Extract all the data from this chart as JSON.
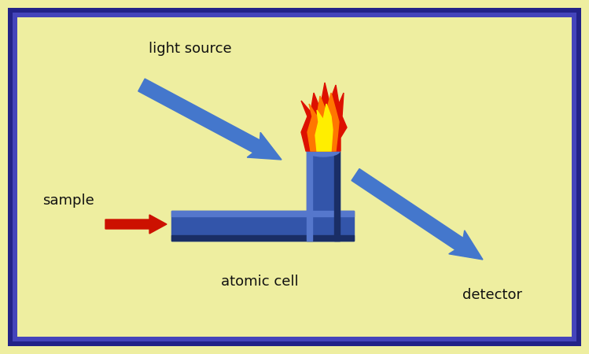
{
  "bg_color": "#EEEEA0",
  "border_outer_color": "#222288",
  "border_inner_color": "#4444BB",
  "pipe_color": "#3355AA",
  "pipe_top_color": "#5577CC",
  "pipe_shadow_color": "#1A2E66",
  "arrow_blue_color": "#4477CC",
  "arrow_red_color": "#CC1100",
  "label_light_source": "light source",
  "label_sample": "sample",
  "label_atomic_cell": "atomic cell",
  "label_detector": "detector",
  "text_color": "#111111",
  "figsize": [
    7.49,
    4.5
  ],
  "dpi": 100
}
